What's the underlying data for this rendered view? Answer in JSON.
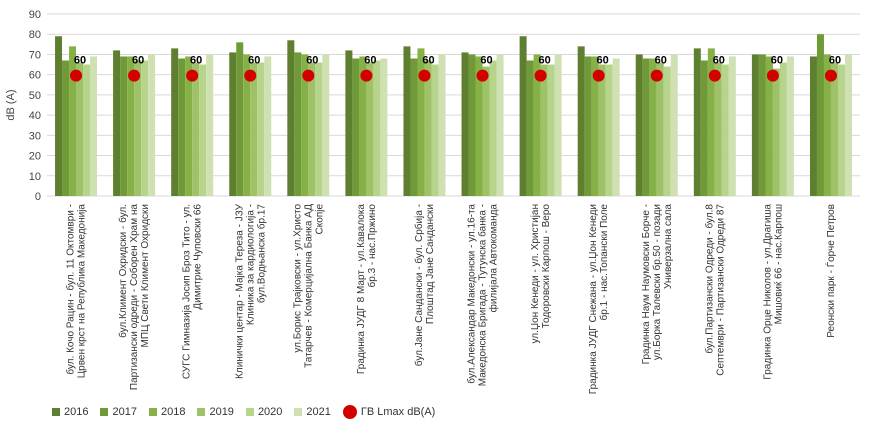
{
  "chart_data": {
    "type": "bar",
    "ylabel": "dB (A)",
    "ylim": [
      0,
      90
    ],
    "yticks": [
      0,
      10,
      20,
      30,
      40,
      50,
      60,
      70,
      80,
      90
    ],
    "grid": "horizontal",
    "legend_position": "bottom",
    "categories": [
      "бул. Кочо Рацин - бул. 11 Октомври - Црвен крст на Република Македонија",
      "бул.Климент Охридски - бул. Партизански одреди - Соборен Храм на МПЦ Свети Климент Охридски",
      "СУГС Гимназија Јосип Броз Тито - ул. Димитрие Чуповски 66",
      "Клинички центар - Мајка Тереза - ЈЗУ Клиника за кардиологија - бул.Водњанска бр.17",
      "ул.Борис Трајковски - ул.Христо Татарчев - Комерцијална Банка АД Скопје",
      "Градинка ЈУДГ 8 Март - ул.Кавалока бр.3 - нас.Пржино",
      "бул.Јане Сандански - бул. Србија - Плоштад Јане Сандански",
      "бул.Александар Македонски - ул.16-та Македонска Бригада - Тутунска банка - филијала Автокоманда",
      "ул.Џон Кенеди - ул. Христијан Тодоровски Карпош - Веро",
      "Градинка ЈУДГ Снежана - ул.Џон Кенеди бр.1 - нас.Топански Поле",
      "Градинка Наум Наумовски Борче - ул.Борка Талевски бр.50 - позади Универзална сала",
      "бул.Партизански Одреди - бул.8 Септември - Партизански Одреди 87",
      "Градинка Орце Николов - ул.Драгиша Мишовиќ 66 - нас.Карпош",
      "Реонски парк - Ѓорче Петров"
    ],
    "series": [
      {
        "name": "2016",
        "color": "#5e7f2f",
        "values": [
          79,
          72,
          73,
          71,
          77,
          72,
          74,
          71,
          79,
          74,
          70,
          73,
          70,
          69
        ]
      },
      {
        "name": "2017",
        "color": "#6f9a37",
        "values": [
          67,
          69,
          68,
          76,
          71,
          68,
          68,
          70,
          67,
          69,
          68,
          67,
          70,
          80
        ]
      },
      {
        "name": "2018",
        "color": "#86b146",
        "values": [
          74,
          69,
          69,
          70,
          70,
          69,
          73,
          69,
          70,
          69,
          68,
          73,
          69,
          70
        ]
      },
      {
        "name": "2019",
        "color": "#9fc167",
        "values": [
          66,
          67,
          66,
          66,
          66,
          66,
          67,
          64,
          65,
          65,
          66,
          66,
          63,
          66
        ]
      },
      {
        "name": "2020",
        "color": "#b7d48d",
        "values": [
          65,
          67,
          65,
          66,
          66,
          67,
          65,
          67,
          65,
          65,
          64,
          65,
          66,
          65
        ]
      },
      {
        "name": "2021",
        "color": "#cfe1b2",
        "values": [
          69,
          70,
          70,
          69,
          70,
          68,
          70,
          70,
          70,
          68,
          70,
          69,
          69,
          70
        ]
      }
    ],
    "limit_series": {
      "name": "ГВ Lmax dB(A)",
      "color": "#d40000",
      "values": [
        60,
        60,
        60,
        60,
        60,
        60,
        60,
        60,
        60,
        60,
        60,
        60,
        60,
        60
      ],
      "label": "60"
    }
  }
}
